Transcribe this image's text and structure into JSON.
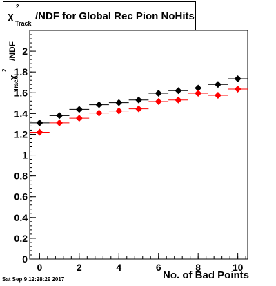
{
  "title": {
    "chi": "χ",
    "sup": "2",
    "sub": "Track",
    "rest": "/NDF for Global Rec Pion NoHits"
  },
  "y_axis": {
    "text": "/NDF",
    "sup": "2",
    "sub": "Track",
    "chi": "χ"
  },
  "x_axis_label": "No. of Bad Points",
  "timestamp": "Sat Sep  9 12:28:29 2017",
  "colors": {
    "series_black": "#000000",
    "series_red": "#ff0000"
  },
  "chart_data": {
    "type": "scatter",
    "title": "χ²_Track/NDF for Global Rec Pion NoHits",
    "xlabel": "No. of Bad Points",
    "ylabel": "χ²_Track/NDF",
    "xlim": [
      -0.5,
      10.5
    ],
    "ylim": [
      0,
      2.2
    ],
    "x_ticks": [
      0,
      2,
      4,
      6,
      8,
      10
    ],
    "y_ticks": [
      0,
      0.2,
      0.4,
      0.6,
      0.8,
      1,
      1.2,
      1.4,
      1.6,
      1.8,
      2
    ],
    "y_tick_labels": [
      "0",
      "0.2",
      "0.4",
      "0.6",
      "0.8",
      "1",
      "1.2",
      "1.4",
      "1.6",
      "1.8",
      "2"
    ],
    "x_tick_labels": [
      "0",
      "2",
      "4",
      "6",
      "8",
      "10"
    ],
    "x": [
      0,
      1,
      2,
      3,
      4,
      5,
      6,
      7,
      8,
      9,
      10
    ],
    "x_error": 0.5,
    "grid": false,
    "series": [
      {
        "color": "#000000",
        "values": [
          1.31,
          1.38,
          1.44,
          1.485,
          1.505,
          1.53,
          1.595,
          1.62,
          1.645,
          1.68,
          1.735
        ]
      },
      {
        "color": "#ff0000",
        "values": [
          1.22,
          1.31,
          1.355,
          1.405,
          1.425,
          1.445,
          1.515,
          1.53,
          1.595,
          1.575,
          1.635
        ]
      }
    ]
  }
}
